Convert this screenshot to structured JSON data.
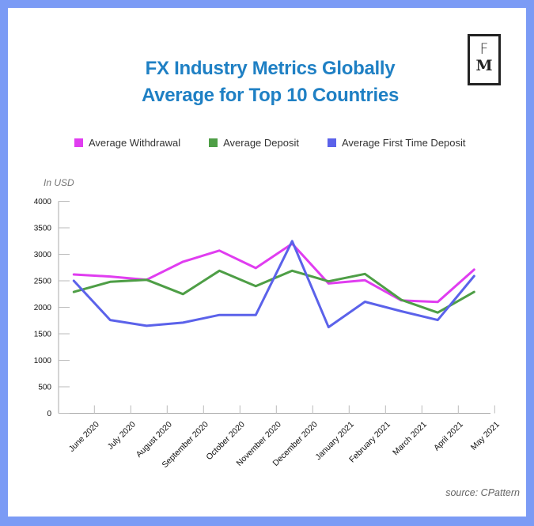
{
  "logo": {
    "top": "F",
    "bottom": "M"
  },
  "title_lines": [
    "FX Industry Metrics Globally",
    "Average for Top 10 Countries"
  ],
  "unit_label": "In USD",
  "source": "source: CPattern",
  "colors": {
    "frame": "#7b9bf5",
    "title": "#1f80c4",
    "withdrawal": "#e03df0",
    "deposit": "#4e9e46",
    "first_time_deposit": "#5b62ea"
  },
  "chart_data": {
    "type": "line",
    "title": "FX Industry Metrics Globally Average for Top 10 Countries",
    "xlabel": "",
    "ylabel": "In USD",
    "ylim": [
      0,
      4000
    ],
    "yticks": [
      0,
      500,
      1000,
      1500,
      2000,
      2500,
      3000,
      3500,
      4000
    ],
    "grid": false,
    "legend_position": "top-center",
    "categories": [
      "June 2020",
      "July 2020",
      "August 2020",
      "September 2020",
      "October 2020",
      "November 2020",
      "December 2020",
      "January 2021",
      "February 2021",
      "March 2021",
      "April 2021",
      "May 2021"
    ],
    "series": [
      {
        "name": "Average Withdrawal",
        "color": "#e03df0",
        "values": [
          2620,
          2580,
          2520,
          2860,
          3070,
          2740,
          3200,
          2450,
          2510,
          2130,
          2100,
          2710
        ]
      },
      {
        "name": "Average Deposit",
        "color": "#4e9e46",
        "values": [
          2290,
          2480,
          2520,
          2250,
          2690,
          2400,
          2690,
          2490,
          2630,
          2140,
          1900,
          2290
        ]
      },
      {
        "name": "Average First Time Deposit",
        "color": "#5b62ea",
        "values": [
          2500,
          1760,
          1650,
          1710,
          1855,
          1855,
          3250,
          1625,
          2105,
          1925,
          1760,
          2590
        ]
      }
    ]
  }
}
